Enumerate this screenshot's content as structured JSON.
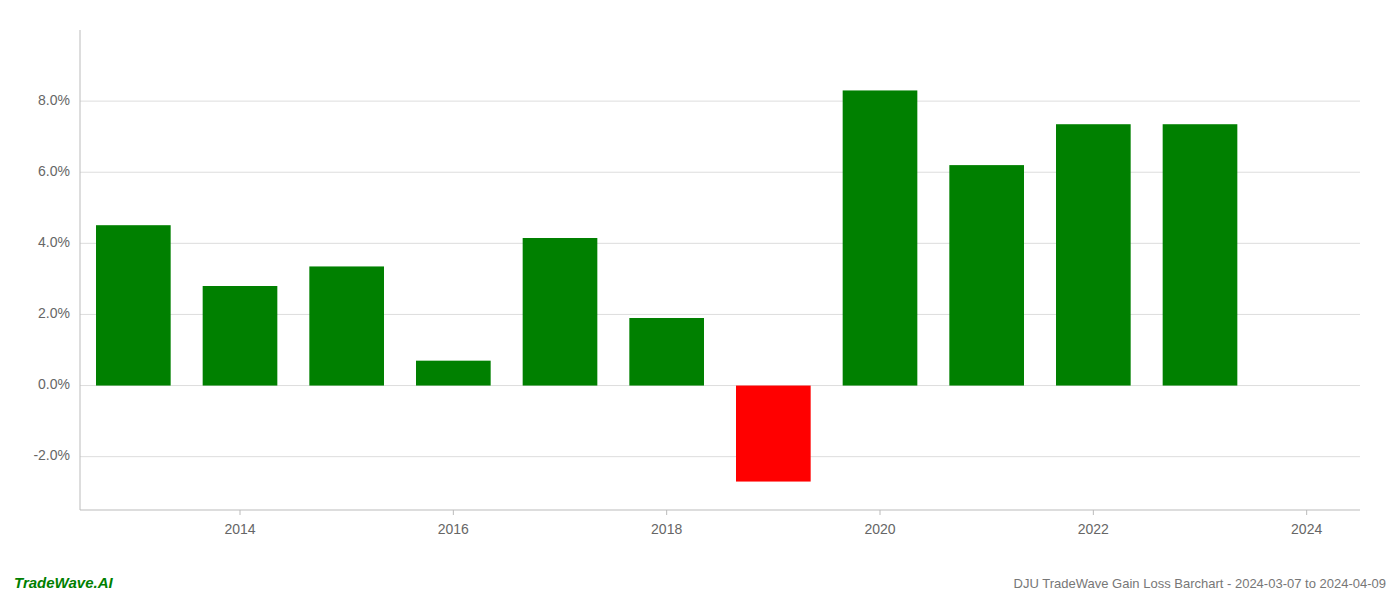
{
  "chart_data": {
    "type": "bar",
    "title": "DJU TradeWave Gain Loss Barchart - 2024-03-07 to 2024-04-09",
    "annotations": [
      "TradeWave.AI"
    ],
    "x": [
      2013,
      2014,
      2015,
      2016,
      2017,
      2018,
      2019,
      2020,
      2021,
      2022,
      2023
    ],
    "values": [
      0.0451,
      0.028,
      0.0335,
      0.007,
      0.0415,
      0.019,
      -0.027,
      0.083,
      0.062,
      0.0735,
      0.0735
    ],
    "colors": [
      "#008000",
      "#008000",
      "#008000",
      "#008000",
      "#008000",
      "#008000",
      "#ff0000",
      "#008000",
      "#008000",
      "#008000",
      "#008000"
    ],
    "xlim": [
      2012.5,
      2024.5
    ],
    "xticks": [
      2014,
      2016,
      2018,
      2020,
      2022,
      2024
    ],
    "ylim": [
      -0.035,
      0.1
    ],
    "yticks": [
      {
        "value": -0.02,
        "label": "-2.0%"
      },
      {
        "value": 0.0,
        "label": "0.0%"
      },
      {
        "value": 0.02,
        "label": "2.0%"
      },
      {
        "value": 0.04,
        "label": "4.0%"
      },
      {
        "value": 0.06,
        "label": "6.0%"
      },
      {
        "value": 0.08,
        "label": "8.0%"
      }
    ],
    "grid": true
  }
}
